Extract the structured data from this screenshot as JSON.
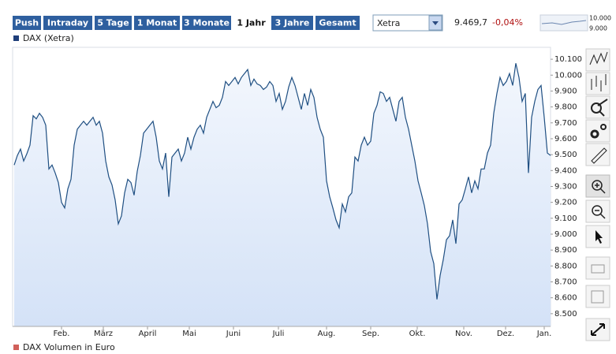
{
  "toolbar": {
    "buttons": [
      "Push",
      "Intraday",
      "5 Tage",
      "1 Monat",
      "3 Monate",
      "1 Jahr",
      "3 Jahre",
      "Gesamt"
    ],
    "active": 5,
    "exchange": "Xetra",
    "last": "9.469,7",
    "change": "-0,04%",
    "mini_labels": [
      "10.000",
      "9.000"
    ]
  },
  "volume_legend": "DAX Volumen in Euro",
  "chart_data": {
    "type": "line",
    "x": [
      0,
      1,
      2,
      3,
      4,
      5,
      6,
      7,
      8,
      9,
      10,
      11,
      12,
      13,
      14,
      15,
      16,
      17,
      18,
      19,
      20,
      21,
      22,
      23,
      24,
      25,
      26,
      27,
      28,
      29,
      30,
      31,
      32,
      33,
      34,
      35,
      36,
      37,
      38,
      39,
      40,
      41,
      42,
      43,
      44,
      45,
      46,
      47,
      48,
      49,
      50,
      51,
      52,
      53,
      54,
      55,
      56,
      57,
      58,
      59,
      60,
      61,
      62,
      63,
      64,
      65,
      66,
      67,
      68,
      69,
      70,
      71,
      72,
      73,
      74,
      75,
      76,
      77,
      78,
      79,
      80,
      81,
      82,
      83,
      84,
      85,
      86,
      87,
      88,
      89,
      90,
      91,
      92,
      93,
      94,
      95,
      96,
      97,
      98,
      99,
      100,
      101,
      102,
      103,
      104,
      105,
      106,
      107,
      108,
      109,
      110,
      111,
      112,
      113,
      114,
      115,
      116,
      117,
      118,
      119,
      120,
      121,
      122,
      123,
      124,
      125,
      126,
      127,
      128,
      129,
      130,
      131,
      132,
      133,
      134,
      135,
      136,
      137,
      138,
      139,
      140,
      141,
      142,
      143,
      144,
      145,
      146,
      147,
      148,
      149,
      150,
      151,
      152,
      153,
      154,
      155,
      156,
      157,
      158,
      159,
      160,
      161,
      162,
      163,
      164,
      165,
      166,
      167,
      168,
      169,
      170
    ],
    "series": [
      {
        "name": "DAX (Xetra)",
        "color": "#1f4f82",
        "legend_color": "#1f3f7a",
        "values": [
          9435,
          9495,
          9535,
          9460,
          9505,
          9560,
          9745,
          9725,
          9760,
          9735,
          9685,
          9410,
          9435,
          9385,
          9325,
          9200,
          9165,
          9285,
          9345,
          9560,
          9660,
          9685,
          9710,
          9685,
          9710,
          9735,
          9685,
          9710,
          9635,
          9460,
          9360,
          9310,
          9215,
          9065,
          9115,
          9260,
          9345,
          9325,
          9245,
          9395,
          9495,
          9635,
          9660,
          9685,
          9710,
          9610,
          9460,
          9410,
          9510,
          9235,
          9485,
          9510,
          9535,
          9460,
          9510,
          9610,
          9535,
          9610,
          9660,
          9685,
          9635,
          9735,
          9785,
          9835,
          9795,
          9810,
          9860,
          9960,
          9935,
          9960,
          9985,
          9945,
          9985,
          10010,
          10035,
          9935,
          9975,
          9945,
          9935,
          9910,
          9925,
          9960,
          9935,
          9835,
          9885,
          9785,
          9835,
          9925,
          9985,
          9935,
          9860,
          9785,
          9885,
          9810,
          9910,
          9860,
          9735,
          9660,
          9610,
          9335,
          9235,
          9165,
          9090,
          9040,
          9190,
          9140,
          9235,
          9260,
          9485,
          9460,
          9560,
          9610,
          9560,
          9585,
          9760,
          9810,
          9895,
          9885,
          9835,
          9860,
          9785,
          9710,
          9835,
          9860,
          9735,
          9660,
          9560,
          9460,
          9335,
          9260,
          9180,
          9065,
          8890,
          8815,
          8590,
          8740,
          8840,
          8965,
          8990,
          9090,
          8940,
          9190,
          9215,
          9285,
          9360,
          9260,
          9335,
          9285,
          9410,
          9410,
          9510,
          9560,
          9760,
          9885,
          9985,
          9935,
          9960,
          10010,
          9935,
          10075,
          9985,
          9835,
          9885,
          9385,
          9735,
          9835,
          9910,
          9935,
          9735,
          9510,
          9495
        ]
      }
    ],
    "xlim": [
      0,
      170
    ],
    "xticks": [
      {
        "value": 15,
        "label": "Feb."
      },
      {
        "value": 28.25,
        "label": "März"
      },
      {
        "value": 42.25,
        "label": "April"
      },
      {
        "value": 55.5,
        "label": "Mai"
      },
      {
        "value": 69.5,
        "label": "Juni"
      },
      {
        "value": 83.75,
        "label": "Juli"
      },
      {
        "value": 99,
        "label": "Aug."
      },
      {
        "value": 113,
        "label": "Sep."
      },
      {
        "value": 127.75,
        "label": "Okt."
      },
      {
        "value": 142.5,
        "label": "Nov."
      },
      {
        "value": 155.75,
        "label": "Dez."
      },
      {
        "value": 168,
        "label": "Jan."
      }
    ],
    "ylim": [
      8420,
      10175
    ],
    "yticks": [
      {
        "value": 8500,
        "label": "8.500"
      },
      {
        "value": 8600,
        "label": "8.600"
      },
      {
        "value": 8700,
        "label": "8.700"
      },
      {
        "value": 8800,
        "label": "8.800"
      },
      {
        "value": 8900,
        "label": "8.900"
      },
      {
        "value": 9000,
        "label": "9.000"
      },
      {
        "value": 9100,
        "label": "9.100"
      },
      {
        "value": 9200,
        "label": "9.200"
      },
      {
        "value": 9300,
        "label": "9.300"
      },
      {
        "value": 9400,
        "label": "9.400"
      },
      {
        "value": 9500,
        "label": "9.500"
      },
      {
        "value": 9600,
        "label": "9.600"
      },
      {
        "value": 9700,
        "label": "9.700"
      },
      {
        "value": 9800,
        "label": "9.800"
      },
      {
        "value": 9900,
        "label": "9.900"
      },
      {
        "value": 10000,
        "label": "10.000"
      },
      {
        "value": 10100,
        "label": "10.100"
      }
    ],
    "grid": false,
    "area_fill": true
  }
}
